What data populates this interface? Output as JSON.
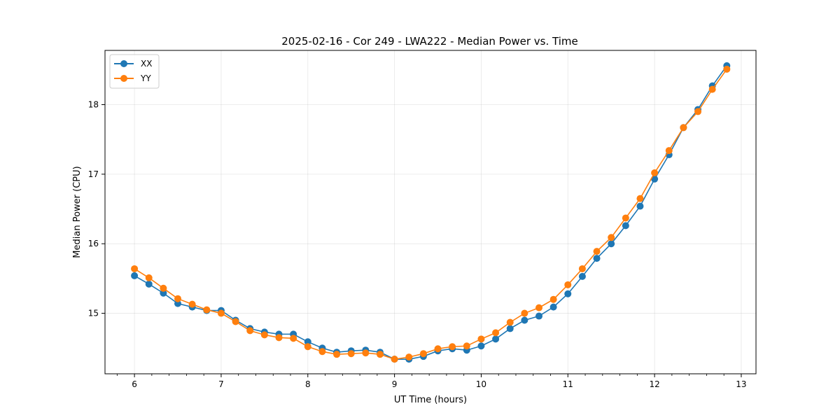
{
  "chart_data": {
    "type": "line",
    "title": "2025-02-16 - Cor 249 - LWA222 - Median Power vs. Time",
    "xlabel": "UT Time (hours)",
    "ylabel": "Median Power (CPU)",
    "xlim": [
      5.66,
      13.17
    ],
    "ylim": [
      14.13,
      18.78
    ],
    "xticks": [
      6,
      7,
      8,
      9,
      10,
      11,
      12,
      13
    ],
    "yticks": [
      15,
      16,
      17,
      18
    ],
    "grid": true,
    "legend_position": "upper-left",
    "x": [
      6.0,
      6.1667,
      6.3333,
      6.5,
      6.6667,
      6.8333,
      7.0,
      7.1667,
      7.3333,
      7.5,
      7.6667,
      7.8333,
      8.0,
      8.1667,
      8.3333,
      8.5,
      8.6667,
      8.8333,
      9.0,
      9.1667,
      9.3333,
      9.5,
      9.6667,
      9.8333,
      10.0,
      10.1667,
      10.3333,
      10.5,
      10.6667,
      10.8333,
      11.0,
      11.1667,
      11.3333,
      11.5,
      11.6667,
      11.8333,
      12.0,
      12.1667,
      12.3333,
      12.5,
      12.6667,
      12.8333
    ],
    "series": [
      {
        "name": "XX",
        "color": "#1f77b4",
        "values": [
          15.54,
          15.42,
          15.29,
          15.14,
          15.09,
          15.04,
          15.04,
          14.9,
          14.78,
          14.73,
          14.7,
          14.7,
          14.59,
          14.5,
          14.44,
          14.46,
          14.47,
          14.44,
          14.34,
          14.34,
          14.38,
          14.46,
          14.49,
          14.47,
          14.53,
          14.63,
          14.78,
          14.9,
          14.96,
          15.09,
          15.28,
          15.53,
          15.79,
          16.0,
          16.26,
          16.54,
          16.93,
          17.28,
          17.67,
          17.93,
          18.27,
          18.56
        ]
      },
      {
        "name": "YY",
        "color": "#ff7f0e",
        "values": [
          15.64,
          15.51,
          15.36,
          15.21,
          15.13,
          15.05,
          15.0,
          14.88,
          14.75,
          14.69,
          14.65,
          14.64,
          14.52,
          14.45,
          14.41,
          14.42,
          14.43,
          14.41,
          14.34,
          14.37,
          14.42,
          14.49,
          14.52,
          14.53,
          14.63,
          14.72,
          14.87,
          15.0,
          15.08,
          15.2,
          15.41,
          15.64,
          15.89,
          16.09,
          16.37,
          16.65,
          17.02,
          17.34,
          17.67,
          17.9,
          18.22,
          18.51
        ]
      }
    ]
  }
}
